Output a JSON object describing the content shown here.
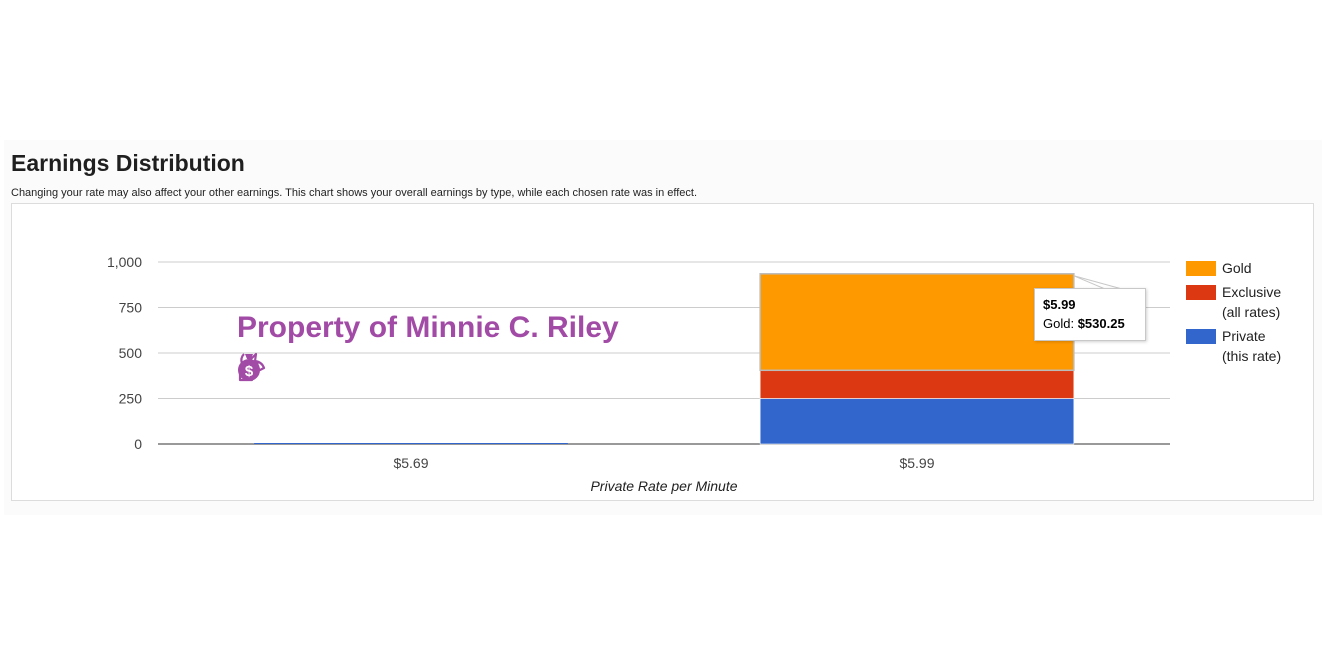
{
  "header": {
    "title": "Earnings Distribution",
    "subtitle": "Changing your rate may also affect your other earnings. This chart shows your overall earnings by type, while each chosen rate was in effect."
  },
  "watermark": {
    "text": "Property of Minnie C. Riley",
    "icons": [
      "unicorn-icon",
      "money-bag-icon"
    ],
    "color": "#a24ba6"
  },
  "chart_data": {
    "type": "bar",
    "stacked": true,
    "categories": [
      "$5.69",
      "$5.99"
    ],
    "series": [
      {
        "name": "Private (this rate)",
        "legend_lines": [
          "Private",
          "(this rate)"
        ],
        "color": "#3366cc",
        "values": [
          0,
          250
        ]
      },
      {
        "name": "Exclusive (all rates)",
        "legend_lines": [
          "Exclusive",
          "(all rates)"
        ],
        "color": "#dc3912",
        "values": [
          0,
          155
        ]
      },
      {
        "name": "Gold",
        "legend_lines": [
          "Gold"
        ],
        "color": "#ff9900",
        "values": [
          0,
          530.25
        ]
      }
    ],
    "xlabel": "Private Rate per Minute",
    "ylabel": "",
    "ylim": [
      0,
      1000
    ],
    "yticks": [
      0,
      250,
      500,
      750,
      1000
    ],
    "ytick_labels": [
      "0",
      "250",
      "500",
      "750",
      "1,000"
    ],
    "grid": true,
    "legend_position": "right",
    "tooltip": {
      "title": "$5.99",
      "label": "Gold:",
      "value": "$530.25"
    }
  }
}
